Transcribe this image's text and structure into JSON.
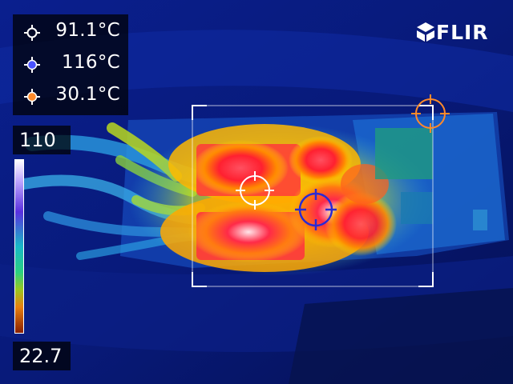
{
  "brand": {
    "name": "FLIR"
  },
  "spot_readings": [
    {
      "value": "91.1°C",
      "marker_color": "#ffffff",
      "marker": "crosshair-white-icon"
    },
    {
      "value": "116°C",
      "marker_color": "#4a52ff",
      "marker": "crosshair-blue-icon"
    },
    {
      "value": "30.1°C",
      "marker_color": "#ff8a2a",
      "marker": "crosshair-orange-icon"
    }
  ],
  "temperature_scale": {
    "max": "110",
    "min": "22.7"
  },
  "colors": {
    "background": "#0a1a6e",
    "hot": "#ff2a40",
    "warm": "#ffd600",
    "cool": "#27a8e8",
    "spot_white": "#ffffff",
    "spot_blue": "#2a2ad4",
    "spot_orange": "#ff8a2a"
  }
}
